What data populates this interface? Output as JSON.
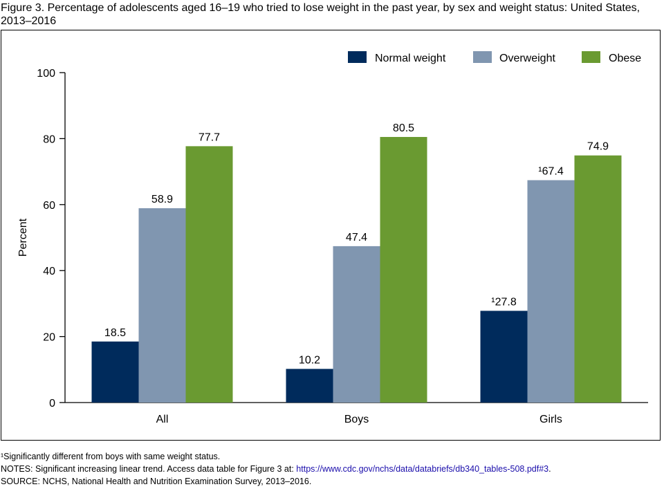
{
  "title": "Figure 3. Percentage of adolescents aged 16–19 who tried to lose weight in the past year, by sex and weight status: United States, 2013–2016",
  "footnote": "¹Significantly different from boys with same weight status.",
  "notes": {
    "prefix": "NOTES: Significant increasing linear trend. Access data table for Figure 3 at: ",
    "link": "https://www.cdc.gov/nchs/data/databriefs/db340_tables-508.pdf#3",
    "suffix": "."
  },
  "source": "SOURCE: NCHS, National Health and Nutrition Examination Survey, 2013–2016.",
  "chart_data": {
    "type": "bar",
    "title": "",
    "xlabel": "",
    "ylabel": "Percent",
    "ylim": [
      0,
      100
    ],
    "yticks": [
      0,
      20,
      40,
      60,
      80,
      100
    ],
    "categories": [
      "All",
      "Boys",
      "Girls"
    ],
    "legend_position": "top-right",
    "grid": false,
    "series": [
      {
        "name": "Normal weight",
        "color": "#002b5c",
        "values": [
          18.5,
          10.2,
          27.8
        ],
        "labels": [
          "18.5",
          "10.2",
          "¹27.8"
        ]
      },
      {
        "name": "Overweight",
        "color": "#8096b0",
        "values": [
          58.9,
          47.4,
          67.4
        ],
        "labels": [
          "58.9",
          "47.4",
          "¹67.4"
        ]
      },
      {
        "name": "Obese",
        "color": "#6a9a31",
        "values": [
          77.7,
          80.5,
          74.9
        ],
        "labels": [
          "77.7",
          "80.5",
          "74.9"
        ]
      }
    ]
  }
}
